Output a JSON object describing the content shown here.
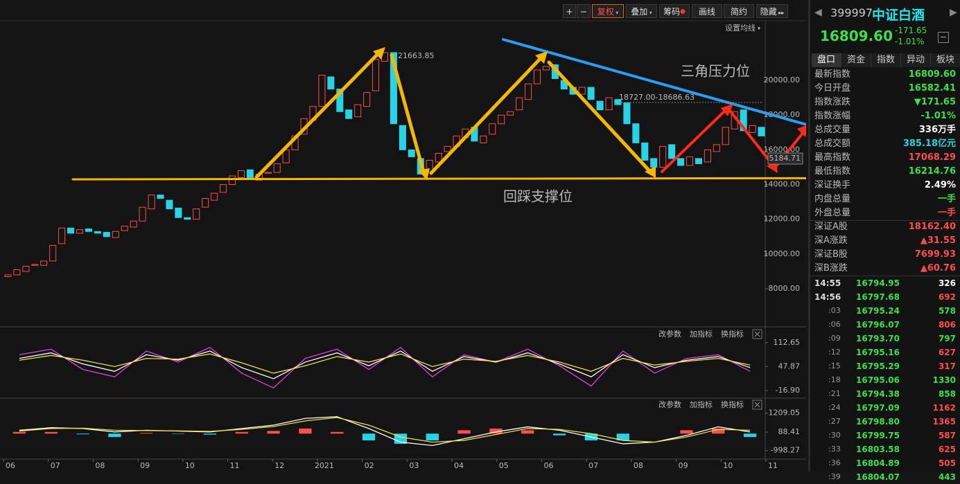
{
  "toolbar": {
    "buttons": [
      "+",
      "−",
      "复权",
      "叠加",
      "筹码",
      "画线",
      "简约",
      "隐藏"
    ],
    "settings": "设置均线"
  },
  "chart_data": [
    {
      "type": "candlestick",
      "open": [
        8700,
        8800,
        9000,
        9350,
        9350,
        9600,
        10600,
        11500,
        11200,
        11450,
        11300,
        11250,
        10950,
        11350,
        11550,
        11900,
        12600,
        13400,
        13100,
        12650,
        12100,
        12000,
        12700,
        13100,
        13550,
        14000,
        14400,
        14850,
        14250,
        14650,
        14700,
        15250,
        16000,
        16900,
        17700,
        18500,
        20200,
        19500,
        18300,
        17900,
        18500,
        19400,
        21100,
        21600,
        17400,
        16000,
        15500,
        14700,
        15300,
        15900,
        16200,
        16700,
        17300,
        16400,
        16900,
        17500,
        18000,
        18300,
        18900,
        19800,
        20600,
        20900,
        20000,
        19600,
        19200,
        19600,
        18800,
        18300,
        18900,
        18700,
        17500,
        16400,
        15500,
        15000,
        16300,
        15500,
        15100,
        15500,
        15300,
        15900,
        16300,
        17200,
        18300,
        17000,
        17300
      ],
      "close": [
        8800,
        9100,
        9300,
        9400,
        9600,
        10500,
        11500,
        11200,
        11400,
        11300,
        11200,
        11000,
        11300,
        11600,
        11900,
        12700,
        13400,
        13200,
        12600,
        12100,
        12000,
        12600,
        13200,
        13500,
        14000,
        14500,
        14800,
        14300,
        14600,
        14700,
        15200,
        16000,
        16800,
        17800,
        18500,
        20300,
        19500,
        18200,
        17800,
        18600,
        19300,
        21200,
        21600,
        17500,
        16000,
        15600,
        14600,
        15400,
        15800,
        16200,
        16800,
        17200,
        16500,
        16800,
        17500,
        18000,
        18200,
        19000,
        19800,
        20600,
        20800,
        20100,
        19500,
        19200,
        19600,
        18900,
        18300,
        19000,
        18600,
        17500,
        16400,
        15400,
        15000,
        16200,
        15500,
        15100,
        15600,
        15200,
        16000,
        16300,
        17300,
        18200,
        17100,
        17400,
        16800
      ],
      "up_color": "#ff4d4d",
      "down_color": "#27d3e6",
      "xlim": [
        0,
        85
      ],
      "xticks": [
        {
          "value": 0,
          "label": "06"
        },
        {
          "value": 5,
          "label": "07"
        },
        {
          "value": 10,
          "label": "08"
        },
        {
          "value": 15,
          "label": "09"
        },
        {
          "value": 20,
          "label": "10"
        },
        {
          "value": 25,
          "label": "11"
        },
        {
          "value": 30,
          "label": "12"
        },
        {
          "value": 35,
          "label": "2021"
        },
        {
          "value": 40,
          "label": "02"
        },
        {
          "value": 45,
          "label": "03"
        },
        {
          "value": 50,
          "label": "04"
        },
        {
          "value": 55,
          "label": "05"
        },
        {
          "value": 60,
          "label": "06"
        },
        {
          "value": 65,
          "label": "07"
        },
        {
          "value": 70,
          "label": "08"
        },
        {
          "value": 75,
          "label": "09"
        },
        {
          "value": 80,
          "label": "10"
        },
        {
          "value": 85,
          "label": "11"
        }
      ],
      "ylim": [
        5890,
        23430
      ],
      "yticks": [
        {
          "value": 8000,
          "label": "8000.00"
        },
        {
          "value": 10000,
          "label": "10000.00"
        },
        {
          "value": 12000,
          "label": "12000.00"
        },
        {
          "value": 14000,
          "label": "14000.00"
        },
        {
          "value": 16000,
          "label": "16000.00"
        },
        {
          "value": 18000,
          "label": "18000.00"
        },
        {
          "value": 20000,
          "label": "20000.00"
        }
      ],
      "high_label": "21663.85",
      "range_label": "18727.00-18686.63",
      "cursor_label": "5184.71",
      "resistance": "三角压力位",
      "support": "回踩支撑位"
    },
    {
      "type": "line",
      "menu": [
        "改参数",
        "加指标",
        "换指标"
      ],
      "series": [
        {
          "color": "#e040e0",
          "values": [
            80,
            95,
            40,
            20,
            90,
            60,
            100,
            30,
            -10,
            70,
            95,
            40,
            100,
            20,
            80,
            60,
            95,
            50,
            -5,
            90,
            30,
            70,
            80,
            35
          ]
        },
        {
          "color": "#ffffff",
          "values": [
            70,
            85,
            55,
            35,
            80,
            65,
            90,
            45,
            15,
            60,
            85,
            50,
            90,
            35,
            75,
            60,
            85,
            55,
            20,
            80,
            45,
            65,
            75,
            45
          ]
        },
        {
          "color": "#f0e040",
          "values": [
            65,
            78,
            65,
            48,
            70,
            68,
            82,
            58,
            30,
            50,
            75,
            60,
            82,
            48,
            68,
            62,
            78,
            60,
            35,
            70,
            52,
            62,
            70,
            52
          ]
        }
      ],
      "ylim": [
        -32,
        148
      ],
      "yticks": [
        112.65,
        47.87,
        {
          "value": -16.9,
          "label": "-16.90"
        }
      ]
    },
    {
      "type": "macd",
      "menu": [
        "改参数",
        "加指标",
        "换指标"
      ],
      "series": [
        {
          "color": "#ffffff",
          "values": [
            200,
            350,
            300,
            100,
            200,
            150,
            100,
            300,
            500,
            900,
            1000,
            300,
            -500,
            -700,
            -300,
            100,
            400,
            200,
            -200,
            -600,
            -500,
            -100,
            400,
            100
          ]
        },
        {
          "color": "#f0e040",
          "values": [
            150,
            300,
            320,
            200,
            180,
            160,
            130,
            250,
            420,
            750,
            950,
            500,
            -200,
            -500,
            -400,
            -50,
            300,
            250,
            0,
            -400,
            -500,
            -200,
            250,
            200
          ]
        }
      ],
      "histogram": [
        100,
        100,
        -40,
        -200,
        40,
        -20,
        -60,
        100,
        160,
        300,
        100,
        -400,
        -600,
        -400,
        200,
        300,
        200,
        -100,
        -400,
        -400,
        0,
        200,
        300,
        -200
      ],
      "up_color": "#ff4d4d",
      "down_color": "#27d3e6",
      "ylim": [
        -1500,
        1970
      ],
      "yticks": [
        1209.05,
        88.41,
        -998.27
      ]
    }
  ],
  "quote": {
    "code": "399997",
    "name": "中证白酒",
    "price": "16809.60",
    "change": "-171.65",
    "pct": "-1.01%"
  },
  "tabs": [
    "盘口",
    "资金",
    "指数",
    "异动",
    "板块"
  ],
  "stats": [
    {
      "label": "最新指数",
      "value": "16809.60",
      "color": "#3ee04a"
    },
    {
      "label": "今日开盘",
      "value": "16582.41",
      "color": "#3ee04a"
    },
    {
      "label": "指数涨跌",
      "value": "▼171.65",
      "color": "#3ee04a"
    },
    {
      "label": "指数涨幅",
      "value": "-1.01%",
      "color": "#3ee04a"
    },
    {
      "label": "总成交量",
      "value": "336万手",
      "color": "#ffffff"
    },
    {
      "label": "总成交额",
      "value": "385.18亿元",
      "color": "#27d3e6"
    },
    {
      "label": "最高指数",
      "value": "17068.29",
      "color": "#ff4d4d"
    },
    {
      "label": "最低指数",
      "value": "16214.76",
      "color": "#3ee04a"
    },
    {
      "label": "深证换手",
      "value": "2.49%",
      "color": "#ffffff"
    },
    {
      "label": "内盘总量",
      "value": "一手",
      "color": "#3ee04a"
    },
    {
      "label": "外盘总量",
      "value": "一手",
      "color": "#ff4d4d"
    },
    {
      "label": "深证A股",
      "value": "18162.40",
      "color": "#ff4d4d"
    },
    {
      "label": "深A涨跌",
      "value": "▲31.55",
      "color": "#ff4d4d"
    },
    {
      "label": "深证B股",
      "value": "7699.93",
      "color": "#ff4d4d"
    },
    {
      "label": "深B涨跌",
      "value": "▲60.76",
      "color": "#ff4d4d"
    }
  ],
  "ticks": [
    {
      "time": "14:55",
      "price": "16794.95",
      "volume": "326",
      "color": "#ffffff"
    },
    {
      "time": "14:56",
      "price": "16797.68",
      "volume": "692",
      "color": "#ff4d4d"
    },
    {
      "time": ":03",
      "price": "16795.24",
      "volume": "578",
      "color": "#3ee04a"
    },
    {
      "time": ":06",
      "price": "16796.07",
      "volume": "806",
      "color": "#ff4d4d"
    },
    {
      "time": ":09",
      "price": "16793.70",
      "volume": "797",
      "color": "#3ee04a"
    },
    {
      "time": ":12",
      "price": "16795.16",
      "volume": "627",
      "color": "#ff4d4d"
    },
    {
      "time": ":15",
      "price": "16795.29",
      "volume": "317",
      "color": "#ff4d4d"
    },
    {
      "time": ":18",
      "price": "16795.06",
      "volume": "1330",
      "color": "#3ee04a"
    },
    {
      "time": ":21",
      "price": "16794.38",
      "volume": "858",
      "color": "#3ee04a"
    },
    {
      "time": ":24",
      "price": "16797.09",
      "volume": "1162",
      "color": "#ff4d4d"
    },
    {
      "time": ":27",
      "price": "16798.80",
      "volume": "1365",
      "color": "#ff4d4d"
    },
    {
      "time": ":30",
      "price": "16799.75",
      "volume": "587",
      "color": "#ff4d4d"
    },
    {
      "time": ":33",
      "price": "16803.58",
      "volume": "625",
      "color": "#ff4d4d"
    },
    {
      "time": ":36",
      "price": "16804.89",
      "volume": "505",
      "color": "#ff4d4d"
    },
    {
      "time": ":39",
      "price": "16804.07",
      "volume": "443",
      "color": "#3ee04a"
    }
  ]
}
